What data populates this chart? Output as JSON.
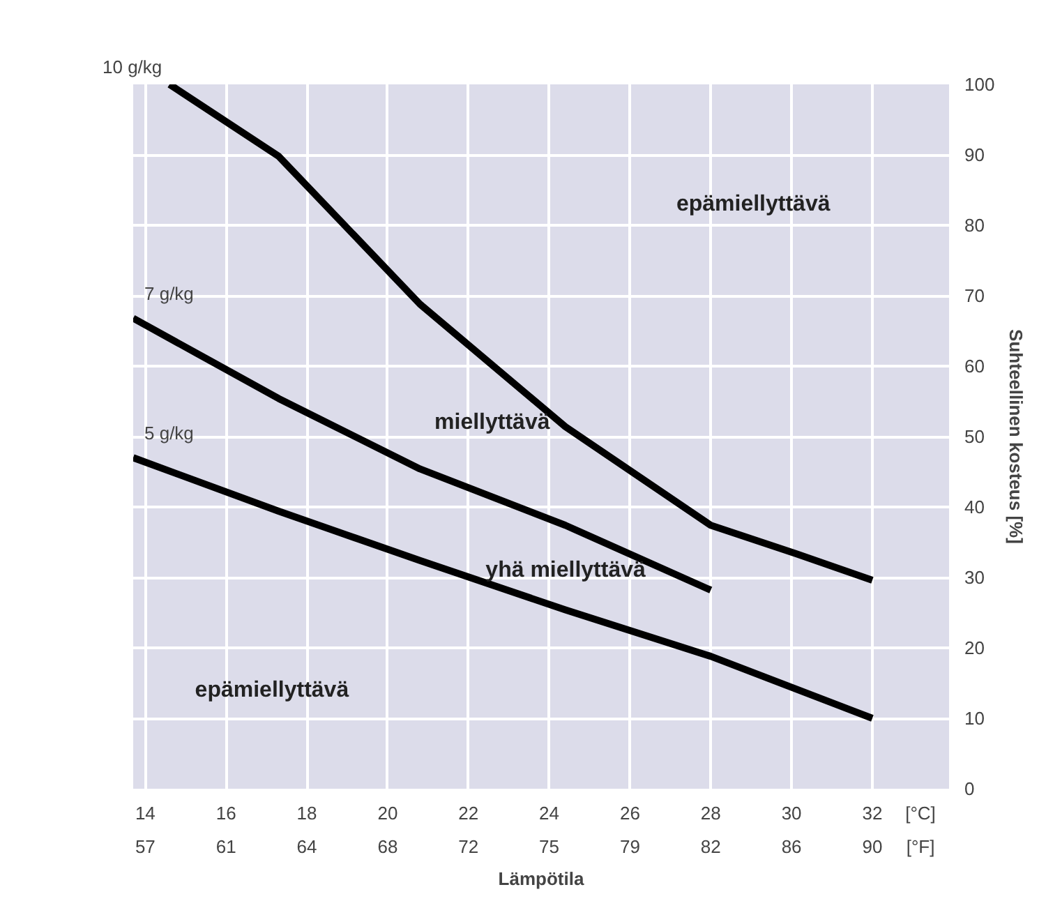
{
  "chart_data": {
    "type": "line",
    "xlabel": "Lämpötila",
    "ylabel": "Suhteellinen kosteus [%]",
    "xlim": [
      13.7,
      33.9
    ],
    "ylim": [
      0,
      100
    ],
    "xticks": [
      14,
      16,
      18,
      20,
      22,
      24,
      26,
      28,
      30,
      32
    ],
    "x2lim": [
      56.66,
      93.02
    ],
    "x2ticks": [
      {
        "value": 57.2,
        "label": "57"
      },
      {
        "value": 60.8,
        "label": "61"
      },
      {
        "value": 64.4,
        "label": "64"
      },
      {
        "value": 68,
        "label": "68"
      },
      {
        "value": 71.6,
        "label": "72"
      },
      {
        "value": 75.2,
        "label": "75"
      },
      {
        "value": 78.8,
        "label": "79"
      },
      {
        "value": 82.4,
        "label": "82"
      },
      {
        "value": 86,
        "label": "86"
      },
      {
        "value": 89.6,
        "label": "90"
      }
    ],
    "yticks": [
      0,
      10,
      20,
      30,
      40,
      50,
      60,
      70,
      80,
      90,
      100
    ],
    "grid": true,
    "marker": "none",
    "line_style": "solid",
    "series": [
      {
        "name": "10 g/kg",
        "color": "#000000",
        "x": [
          14.6,
          17.3,
          20.8,
          24.4,
          28.0,
          30.1,
          32.0
        ],
        "values": [
          100,
          89.8,
          68.8,
          51.4,
          37.4,
          33.4,
          29.6
        ]
      },
      {
        "name": "7 g/kg",
        "color": "#000000",
        "x": [
          13.7,
          17.3,
          20.8,
          24.4,
          28.0
        ],
        "values": [
          66.8,
          55.4,
          45.4,
          37.4,
          28.2
        ]
      },
      {
        "name": "5 g/kg",
        "color": "#000000",
        "x": [
          13.7,
          17.3,
          20.8,
          24.4,
          28.0,
          32.0
        ],
        "values": [
          47,
          39.4,
          32.4,
          25.4,
          18.8,
          10
        ]
      }
    ],
    "annotations": [
      "epämiellyttävä",
      "miellyttävä",
      "yhä miellyttävä",
      "epämiellyttävä",
      "[°C]",
      "[°F]"
    ]
  }
}
